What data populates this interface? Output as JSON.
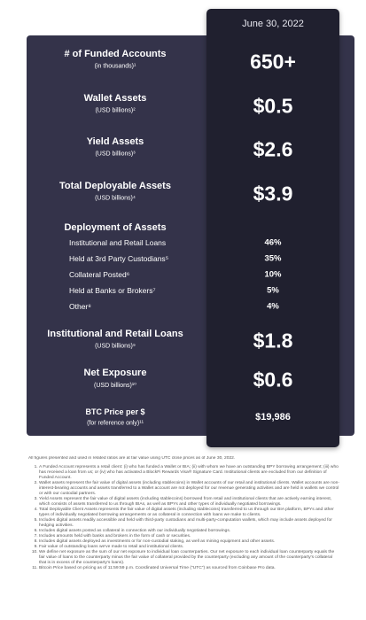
{
  "header": {
    "date": "June 30, 2022"
  },
  "metrics_top": [
    {
      "label": "# of Funded Accounts",
      "sublabel": "(in thousands)¹",
      "value": "650+"
    },
    {
      "label": "Wallet Assets",
      "sublabel": "(USD billions)²",
      "value": "$0.5"
    },
    {
      "label": "Yield Assets",
      "sublabel": "(USD billions)³",
      "value": "$2.6"
    },
    {
      "label": "Total Deployable Assets",
      "sublabel": "(USD billions)⁴",
      "value": "$3.9"
    }
  ],
  "deployment": {
    "title": "Deployment of Assets",
    "items": [
      {
        "label": "Institutional and Retail Loans",
        "value": "46%"
      },
      {
        "label": "Held at 3rd Party Custodians⁵",
        "value": "35%"
      },
      {
        "label": "Collateral Posted⁶",
        "value": "10%"
      },
      {
        "label": "Held at Banks or Brokers⁷",
        "value": "5%"
      },
      {
        "label": "Other⁸",
        "value": "4%"
      }
    ]
  },
  "metrics_bottom": [
    {
      "label": "Institutional and Retail Loans",
      "sublabel": "(USD billions)⁹",
      "value": "$1.8"
    },
    {
      "label": "Net Exposure",
      "sublabel": "(USD billions)¹⁰",
      "value": "$0.6"
    }
  ],
  "btc": {
    "label": "BTC Price per $",
    "sublabel": "(for reference only)¹¹",
    "value": "$19,986"
  },
  "footer": {
    "intro": "All figures presented and used in related ratios are at fair value using UTC close prices as of June 30, 2022.",
    "notes": [
      "A Funded Account represents a retail client: (i) who has funded a Wallet or BIA; (ii) with whom we have an outstanding BPY borrowing arrangement; (iii) who has received a loan from us; or (iv) who has activated a BlockFi Rewards Visa® Signature Card. Institutional clients are excluded from our definition of Funded Account.",
      "Wallet assets represent the fair value of digital assets (including stablecoins) in Wallet accounts of our retail and institutional clients. Wallet accounts are non-interest-bearing accounts and assets transferred to a Wallet account are not deployed for our revenue generating activities and are held in wallets we control or with our custodial partners.",
      "Yield Assets represent the fair value of digital assets (including stablecoins) borrowed from retail and institutional clients that are actively earning interest, which consists of assets transferred to us through BIAs, as well as BPYs and other types of individually negotiated borrowings.",
      "Total Deployable Client Assets represents the fair value of digital assets (including stablecoins) transferred to us through our BIA platform, BPYs and other types of individually negotiated borrowing arrangements or as collateral in connection with loans we make to clients.",
      "Includes digital assets readily accessible and held with third-party custodians and multi-party-computation wallets, which may include assets deployed for hedging activities.",
      "Includes digital assets posted as collateral in connection with our individually negotiated borrowings.",
      "Includes amounts held with banks and brokers in the form of cash or securities.",
      "Includes digital assets deployed as investments or for non-custodial staking, as well as mining equipment and other assets.",
      "Fair value of outstanding loans we've made to retail and institutional clients.",
      "We define net exposure as the sum of our net exposure to individual loan counterparties. Our net exposure to each individual loan counterparty equals the fair value of loans to the counterparty minus the fair value of collateral provided by the counterparty (excluding any amount of the counterparty's collateral that is in excess of the counterparty's loans).",
      "Bitcoin Price based on pricing as of 11:59:59 p.m. Coordinated Universal Time (\"UTC\") as sourced from Coinbase Pro data."
    ]
  }
}
